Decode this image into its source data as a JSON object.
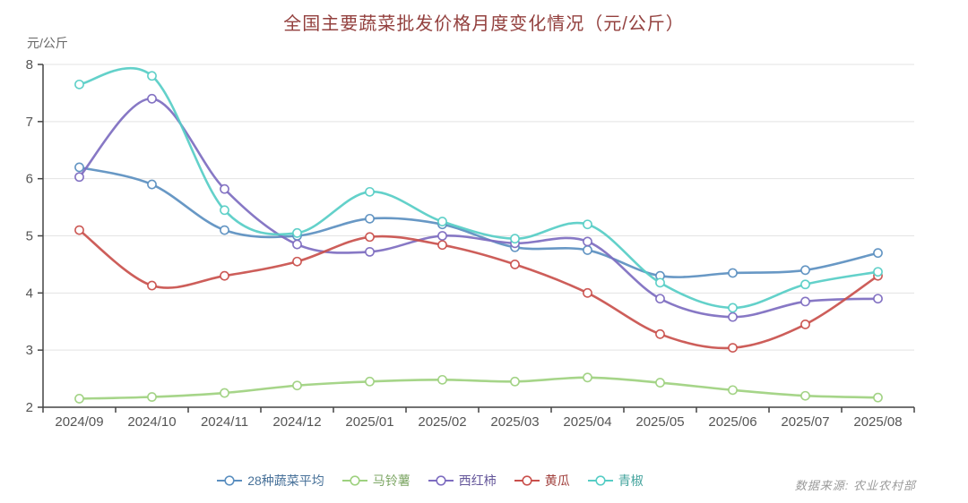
{
  "title": "全国主要蔬菜批发价格月度变化情况（元/公斤）",
  "y_axis_unit": "元/公斤",
  "source_note": "数据来源: 农业农村部",
  "colors": {
    "title": "#93403e",
    "axis_line": "#444444",
    "axis_text": "#555555",
    "grid_line": "#e3e3e3",
    "source_text": "#9a9a9a"
  },
  "chart_data": {
    "type": "line",
    "smooth": true,
    "grid": true,
    "legend_position": "bottom",
    "categories": [
      "2024/09",
      "2024/10",
      "2024/11",
      "2024/12",
      "2025/01",
      "2025/02",
      "2025/03",
      "2025/04",
      "2025/05",
      "2025/06",
      "2025/07",
      "2025/08"
    ],
    "series": [
      {
        "name": "28种蔬菜平均",
        "color": "#5b8fc0",
        "values": [
          6.2,
          5.9,
          5.1,
          5.0,
          5.3,
          5.2,
          4.8,
          4.75,
          4.3,
          4.35,
          4.4,
          4.7
        ]
      },
      {
        "name": "马铃薯",
        "color": "#9ed17f",
        "values": [
          2.15,
          2.18,
          2.25,
          2.38,
          2.45,
          2.48,
          2.45,
          2.52,
          2.43,
          2.3,
          2.2,
          2.17
        ]
      },
      {
        "name": "西红柿",
        "color": "#7d6cc0",
        "values": [
          6.03,
          7.4,
          5.82,
          4.85,
          4.72,
          5.0,
          4.87,
          4.9,
          3.9,
          3.58,
          3.85,
          3.9
        ]
      },
      {
        "name": "黄瓜",
        "color": "#c9504c",
        "values": [
          5.1,
          4.13,
          4.3,
          4.55,
          4.98,
          4.84,
          4.5,
          4.0,
          3.28,
          3.04,
          3.45,
          4.3
        ]
      },
      {
        "name": "青椒",
        "color": "#56cdc5",
        "values": [
          7.65,
          7.8,
          5.45,
          5.05,
          5.77,
          5.25,
          4.95,
          5.2,
          4.18,
          3.74,
          4.15,
          4.37
        ]
      }
    ],
    "xlabel": "",
    "ylabel": "元/公斤",
    "ylim": [
      2,
      8
    ],
    "y_ticks": [
      2,
      3,
      4,
      5,
      6,
      7,
      8
    ]
  }
}
